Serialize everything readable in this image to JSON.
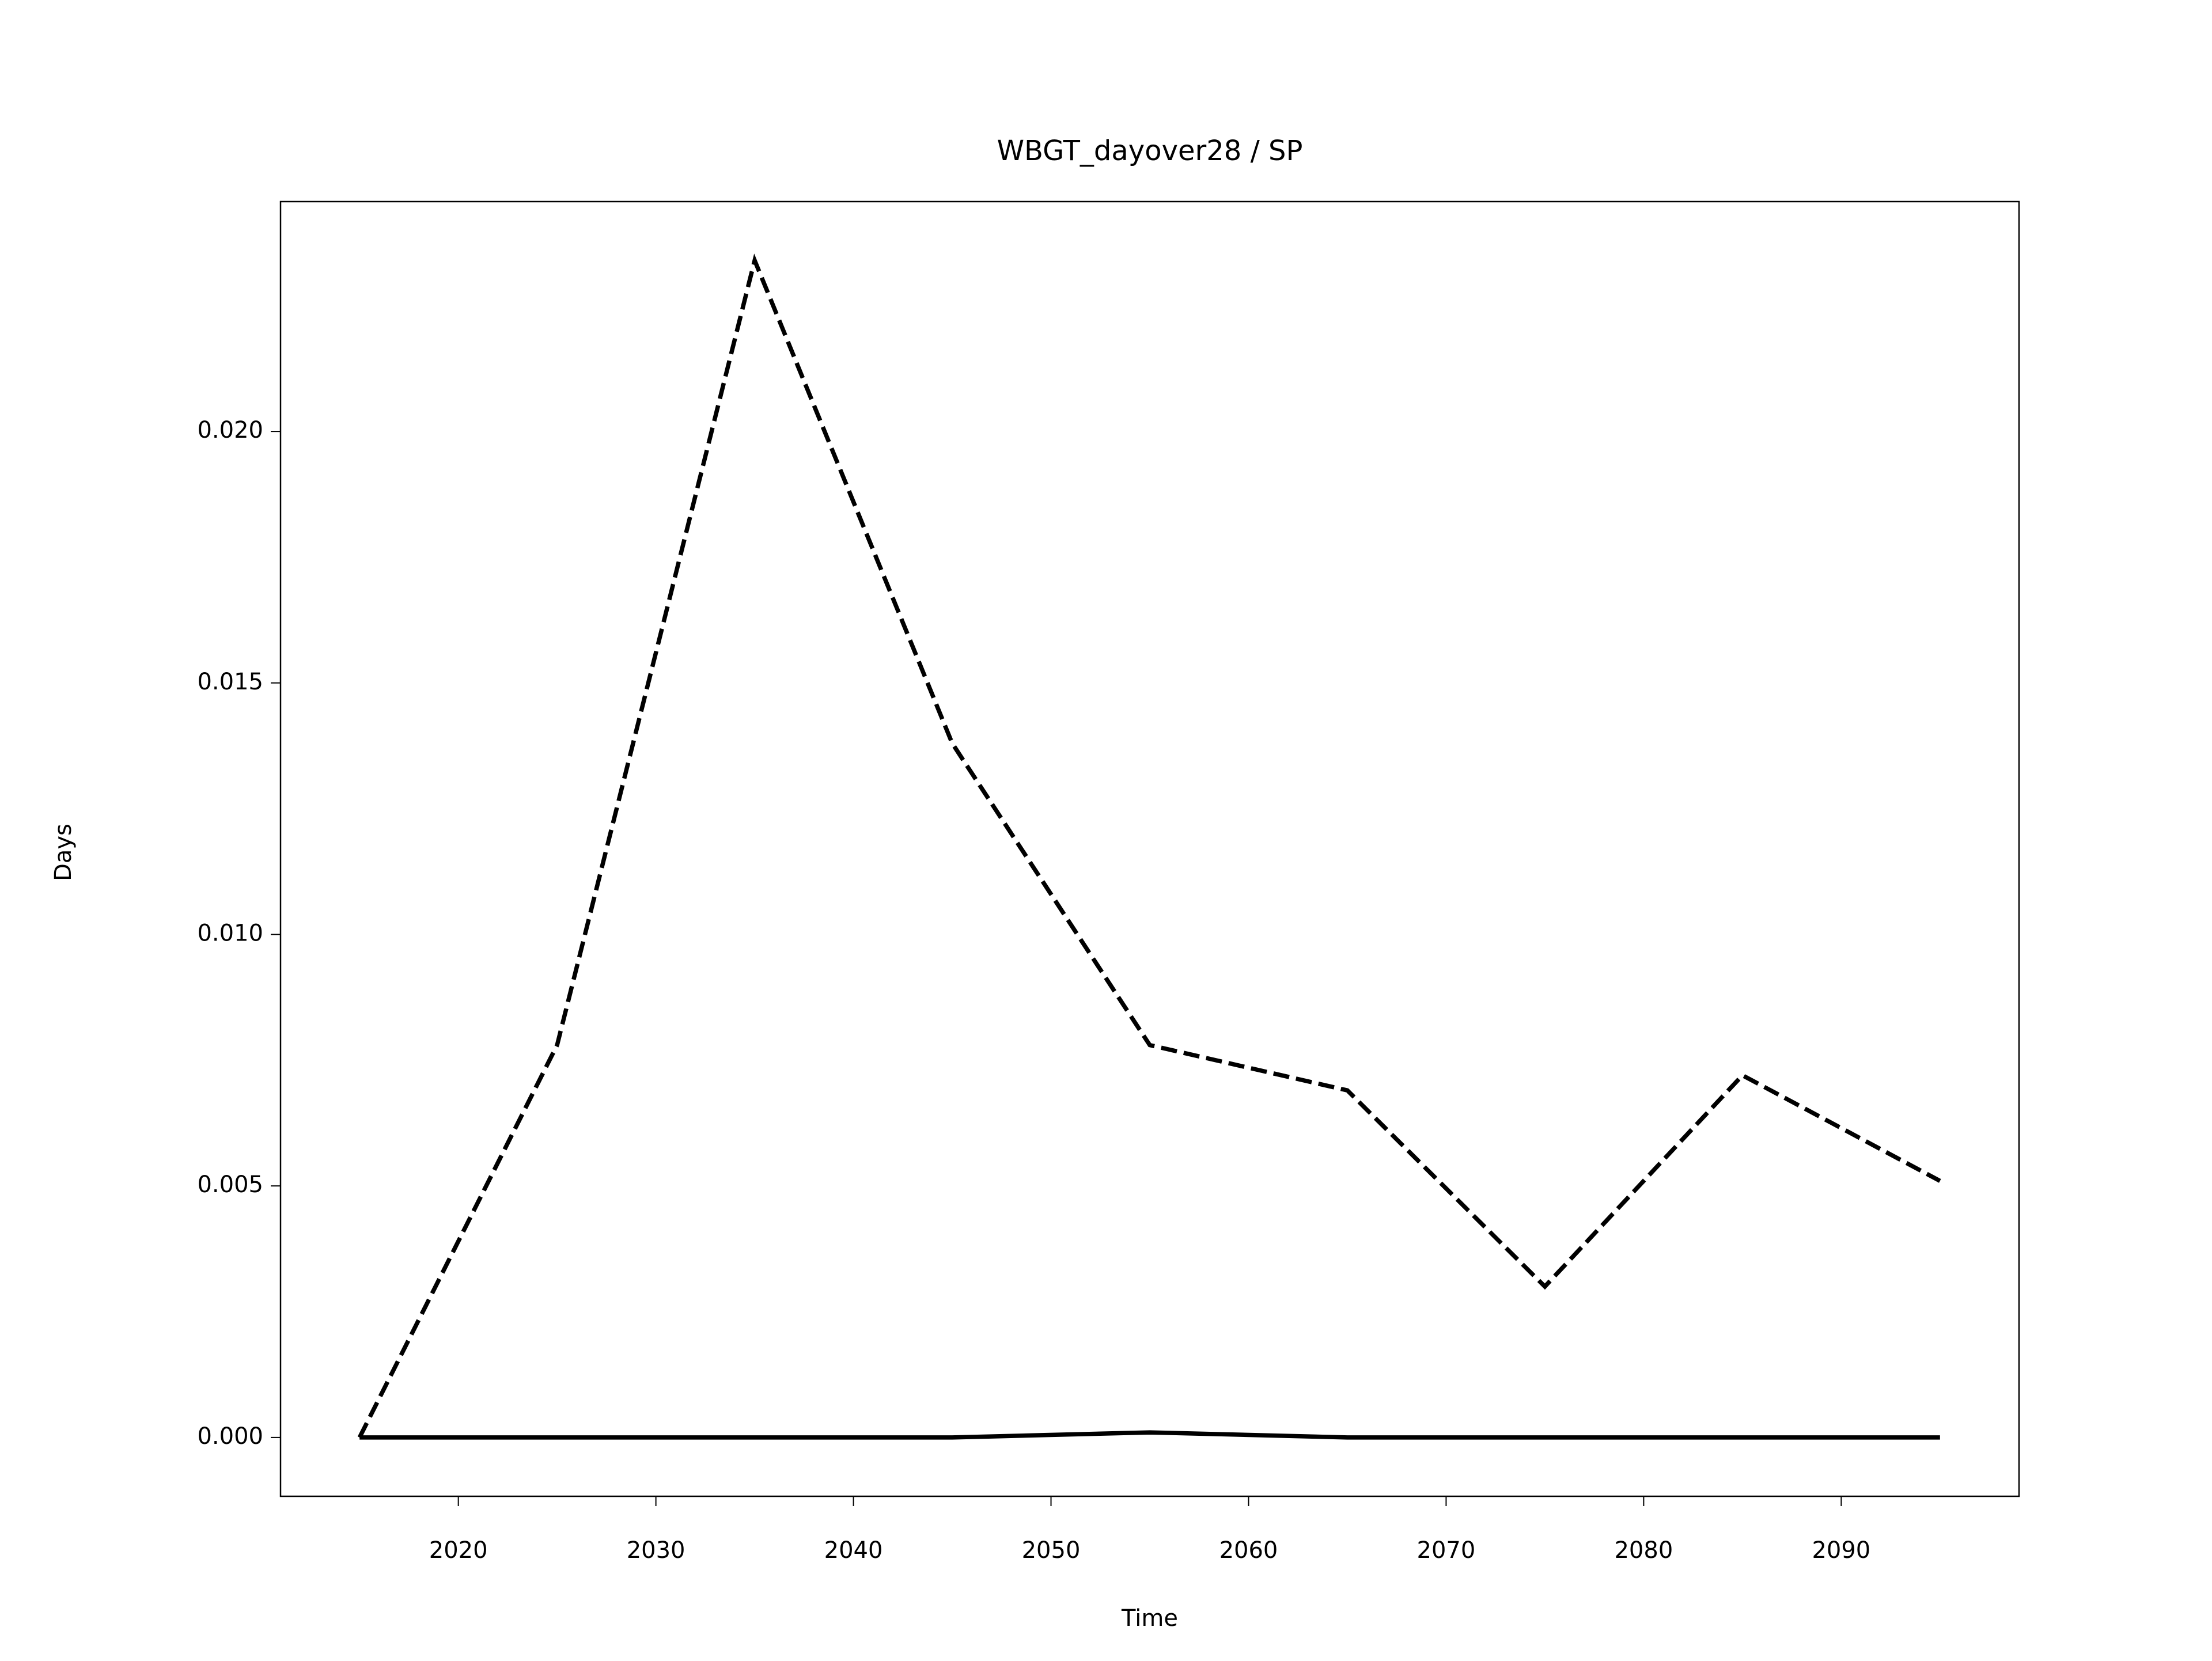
{
  "chart_data": {
    "type": "line",
    "title": "WBGT_dayover28 / SP",
    "x_label": "Time",
    "y_label": "Days",
    "x": [
      2015,
      2025,
      2035,
      2045,
      2055,
      2065,
      2075,
      2085,
      2095
    ],
    "series": [
      {
        "color": "#000000",
        "linestyle": "dashed",
        "values": [
          0,
          0.0078,
          0.0234,
          0.0138,
          0.0078,
          0.0069,
          0.003,
          0.0072,
          0.0051
        ]
      },
      {
        "color": "#000000",
        "linestyle": "solid",
        "values": [
          0,
          0,
          0,
          0,
          0.0001,
          0,
          0,
          0,
          0
        ]
      }
    ],
    "xlim": [
      2011,
      2099
    ],
    "xticks": [
      2020,
      2030,
      2040,
      2050,
      2060,
      2070,
      2080,
      2090
    ],
    "ylim": [
      -0.00117,
      0.02457
    ],
    "yticks": [
      {
        "value": 0,
        "label": "0.000"
      },
      {
        "value": 0.005,
        "label": "0.005"
      },
      {
        "value": 0.01,
        "label": "0.010"
      },
      {
        "value": 0.015,
        "label": "0.015"
      },
      {
        "value": 0.02,
        "label": "0.020"
      }
    ],
    "grid": false
  }
}
